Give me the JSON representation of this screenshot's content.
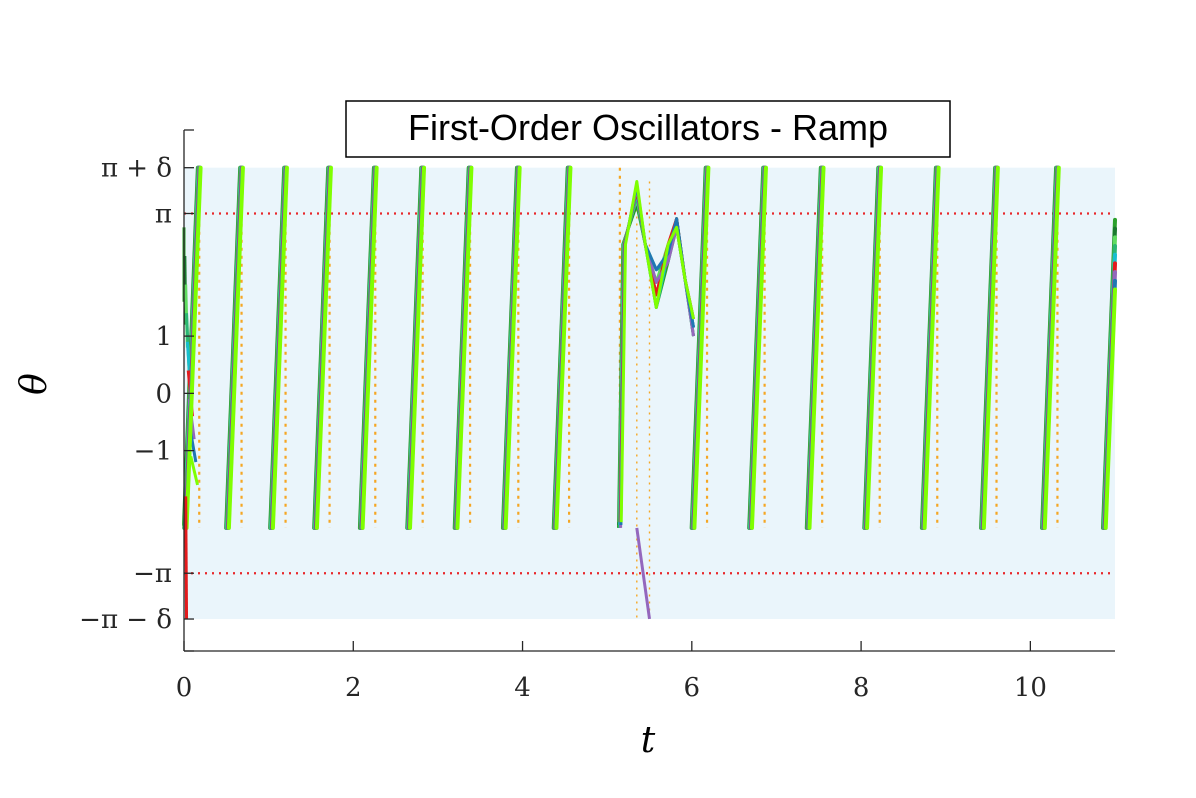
{
  "chart_data": {
    "type": "line",
    "title": "First-Order Oscillators - Ramp",
    "xlabel": "t",
    "ylabel": "θ",
    "xlim": [
      0,
      11
    ],
    "ylim": [
      -4.5,
      4.6
    ],
    "delta": 0.8,
    "x_ticks": [
      {
        "value": 0,
        "label": "0"
      },
      {
        "value": 2,
        "label": "2"
      },
      {
        "value": 4,
        "label": "4"
      },
      {
        "value": 6,
        "label": "6"
      },
      {
        "value": 8,
        "label": "8"
      },
      {
        "value": 10,
        "label": "10"
      }
    ],
    "y_ticks": [
      {
        "value": 3.9416,
        "label": "π + δ"
      },
      {
        "value": 3.1416,
        "label": "π"
      },
      {
        "value": 1,
        "label": "1"
      },
      {
        "value": 0,
        "label": "0"
      },
      {
        "value": -1,
        "label": "−1"
      },
      {
        "value": -3.1416,
        "label": "−π"
      },
      {
        "value": -3.9416,
        "label": "−π − δ"
      }
    ],
    "shaded_band": {
      "y0": -3.9416,
      "y1": 3.9416,
      "color": "#eaf5fb"
    },
    "reference_lines": [
      {
        "y": 3.1416,
        "color": "#e8272a",
        "style": "dotted"
      },
      {
        "y": -3.1416,
        "color": "#e8272a",
        "style": "dotted"
      }
    ],
    "reset_lines_color": "#f5a623",
    "ramp": {
      "reset_low": -2.35,
      "reset_high": 3.9416,
      "slope": 38.0,
      "reset_times": [
        0.18,
        0.68,
        1.2,
        1.72,
        2.26,
        2.82,
        3.38,
        3.95,
        4.55,
        5.15,
        6.18,
        6.86,
        7.54,
        8.22,
        8.9,
        9.6,
        10.32,
        11.04
      ]
    },
    "series": [
      {
        "color": "#2ca02c"
      },
      {
        "color": "#1a7a2e"
      },
      {
        "color": "#5fdc5f"
      },
      {
        "color": "#2bb673"
      },
      {
        "color": "#17becf"
      },
      {
        "color": "#e41a1c"
      },
      {
        "color": "#9467bd"
      },
      {
        "color": "#1f77b4"
      },
      {
        "color": "#7fff00"
      }
    ]
  }
}
